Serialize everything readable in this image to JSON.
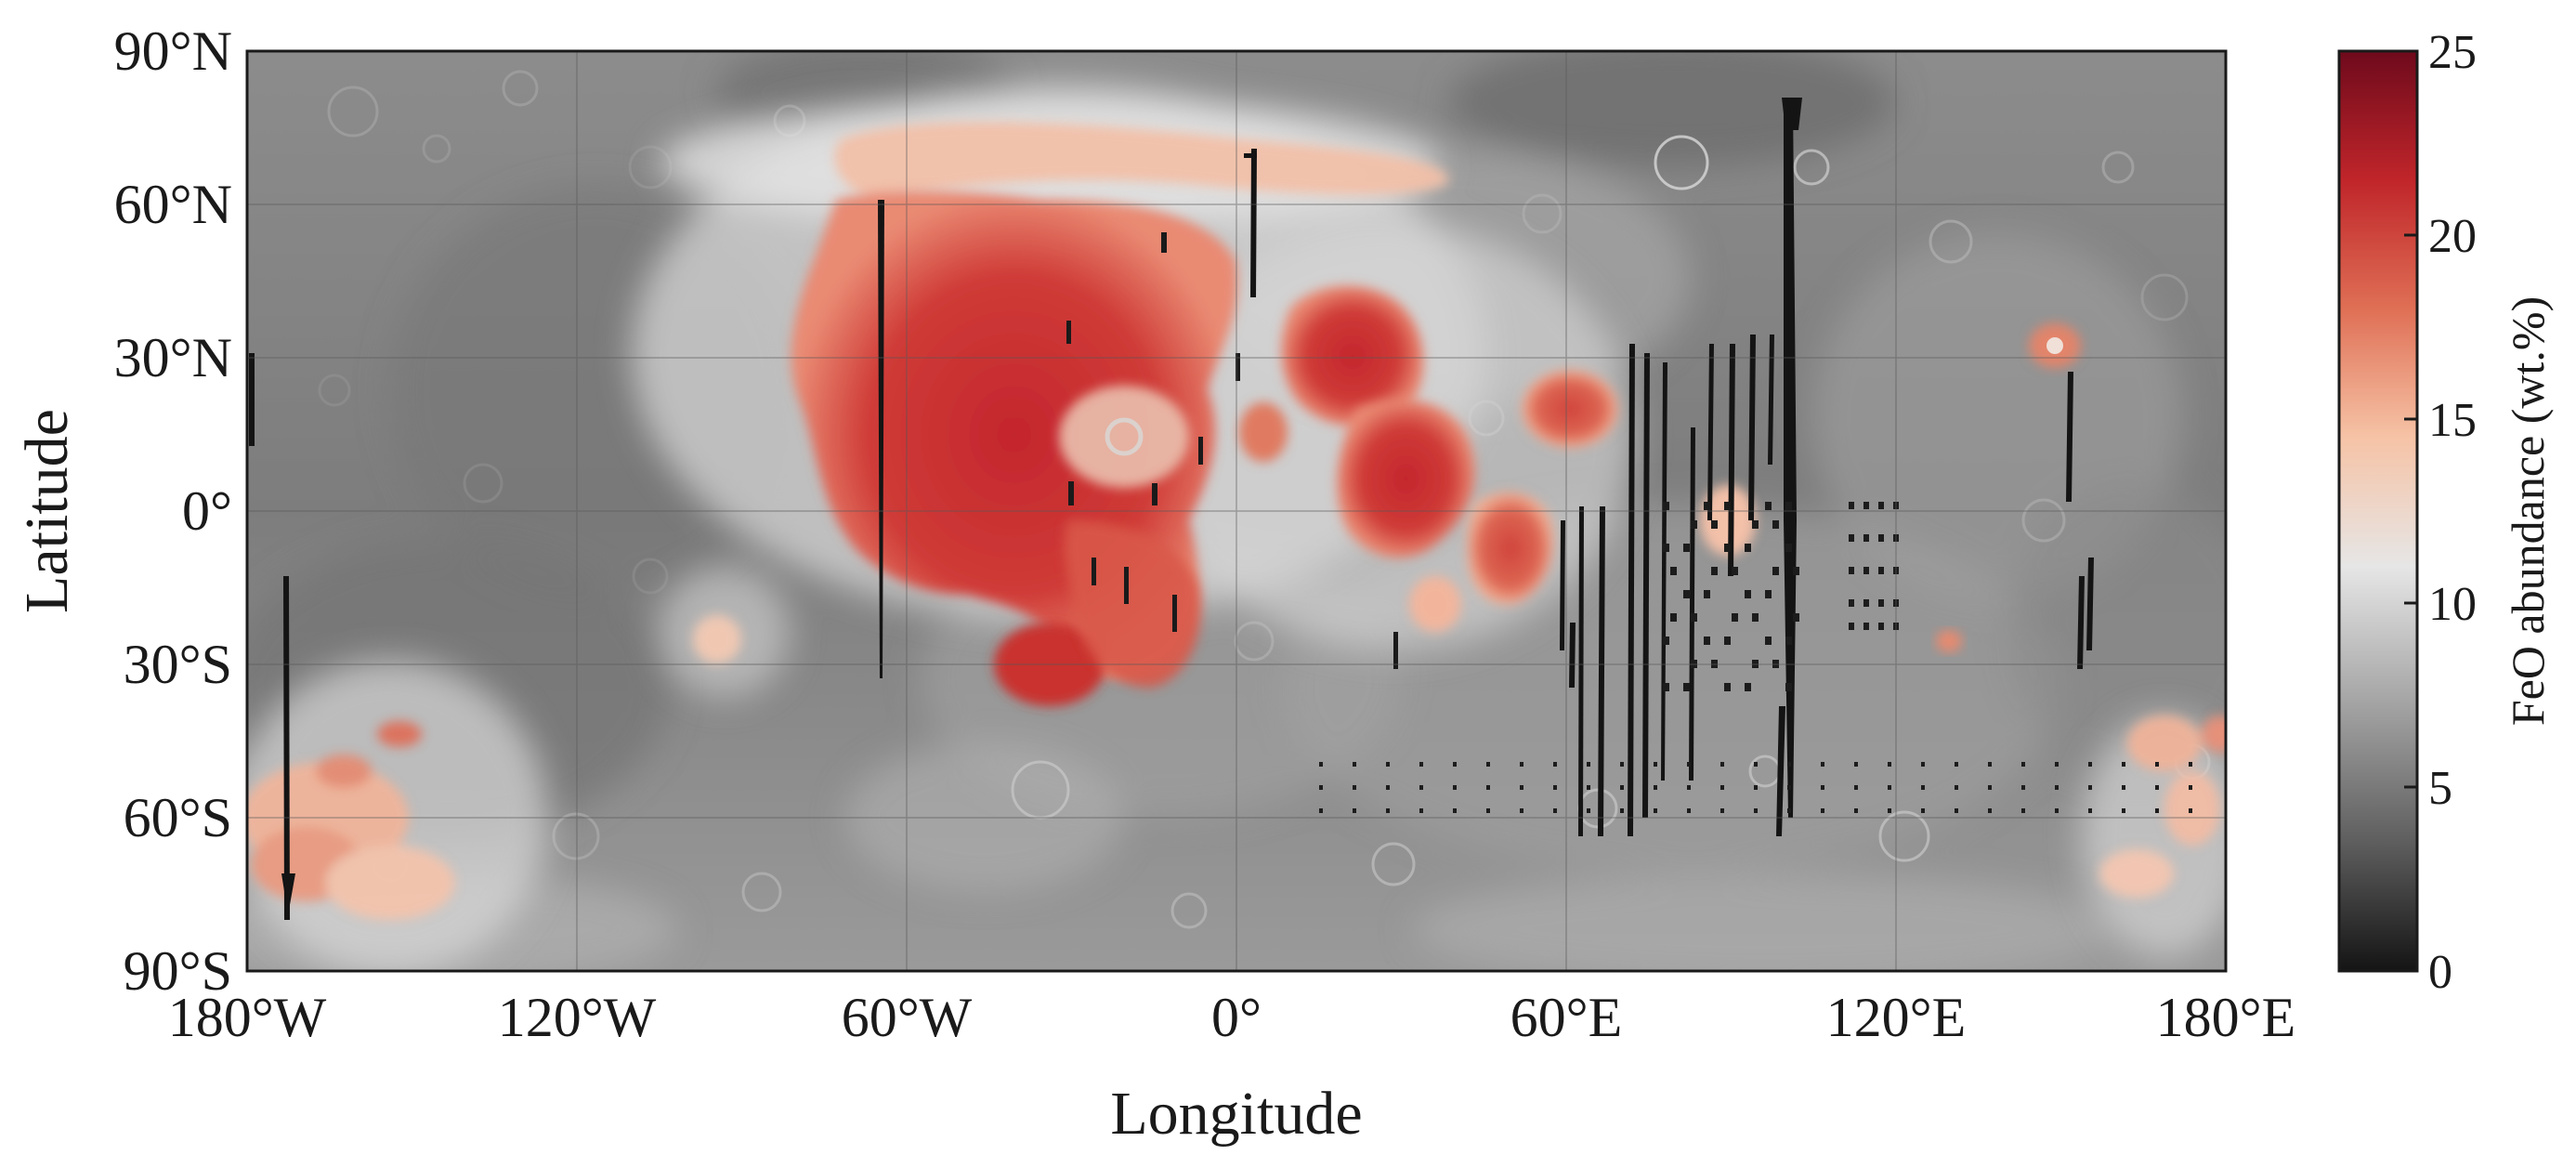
{
  "map": {
    "xlabel": "Longitude",
    "ylabel": "Latitude",
    "x_ticks": [
      {
        "value": -180,
        "label": "180°W"
      },
      {
        "value": -120,
        "label": "120°W"
      },
      {
        "value": -60,
        "label": "60°W"
      },
      {
        "value": 0,
        "label": "0°"
      },
      {
        "value": 60,
        "label": "60°E"
      },
      {
        "value": 120,
        "label": "120°E"
      },
      {
        "value": 180,
        "label": "180°E"
      }
    ],
    "y_ticks": [
      {
        "value": 90,
        "label": "90°N"
      },
      {
        "value": 60,
        "label": "60°N"
      },
      {
        "value": 30,
        "label": "30°N"
      },
      {
        "value": 0,
        "label": "0°"
      },
      {
        "value": -30,
        "label": "30°S"
      },
      {
        "value": -60,
        "label": "60°S"
      },
      {
        "value": -90,
        "label": "90°S"
      }
    ],
    "x_range": [
      -180,
      180
    ],
    "y_range": [
      -90,
      90
    ],
    "grid": true,
    "colorbar": {
      "label": "FeO abundance (wt.%)",
      "range": [
        0,
        25
      ],
      "ticks": [
        {
          "value": 0,
          "label": "0"
        },
        {
          "value": 5,
          "label": "5"
        },
        {
          "value": 10,
          "label": "10"
        },
        {
          "value": 15,
          "label": "15"
        },
        {
          "value": 20,
          "label": "20"
        },
        {
          "value": 25,
          "label": "25"
        }
      ],
      "colors": [
        "#141414",
        "#5e5e5e",
        "#a8a8a8",
        "#e6e6e6",
        "#f6c3a6",
        "#df6f55",
        "#c0252a",
        "#6e0a1c"
      ],
      "position": "right"
    }
  }
}
